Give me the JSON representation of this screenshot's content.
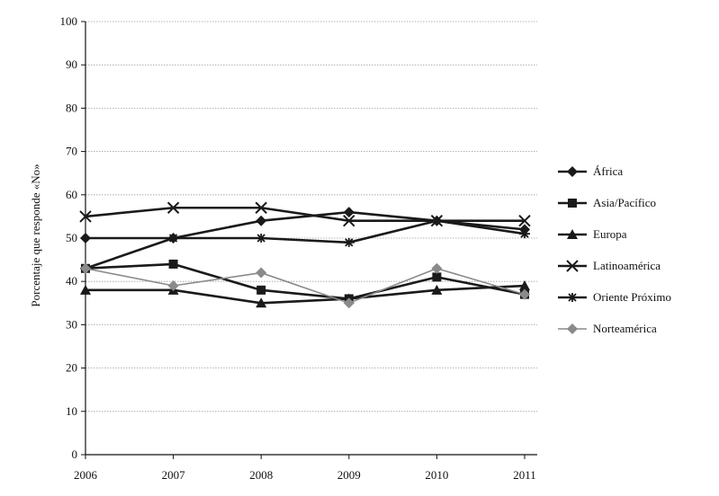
{
  "chart_data": {
    "type": "line",
    "title": "",
    "xlabel": "",
    "ylabel": "Porcentaje que responde «No»",
    "ylim": [
      0,
      100
    ],
    "yticks": [
      0,
      10,
      20,
      30,
      40,
      50,
      60,
      70,
      80,
      90,
      100
    ],
    "grid": "horizontal",
    "legend_position": "right",
    "x": [
      "2006",
      "2007",
      "2008",
      "2009",
      "2010",
      "2011"
    ],
    "series": [
      {
        "name": "África",
        "marker": "diamond",
        "values": [
          50,
          50,
          54,
          56,
          54,
          52
        ]
      },
      {
        "name": "Asia/Pacífico",
        "marker": "square",
        "values": [
          43,
          44,
          38,
          36,
          41,
          37
        ]
      },
      {
        "name": "Europa",
        "marker": "triangle",
        "values": [
          38,
          38,
          35,
          36,
          38,
          39
        ]
      },
      {
        "name": "Latinoamérica",
        "marker": "x",
        "values": [
          55,
          57,
          57,
          54,
          54,
          54
        ]
      },
      {
        "name": "Oriente Próximo",
        "marker": "star",
        "values": [
          43,
          50,
          50,
          49,
          54,
          51
        ]
      },
      {
        "name": "Norteamérica",
        "marker": "diamond-light",
        "values": [
          43,
          39,
          42,
          35,
          43,
          37
        ]
      }
    ],
    "colors": {
      "line": "#1a1a1a",
      "light_line": "#8a8a8a",
      "grid": "#9a9a9a"
    }
  }
}
